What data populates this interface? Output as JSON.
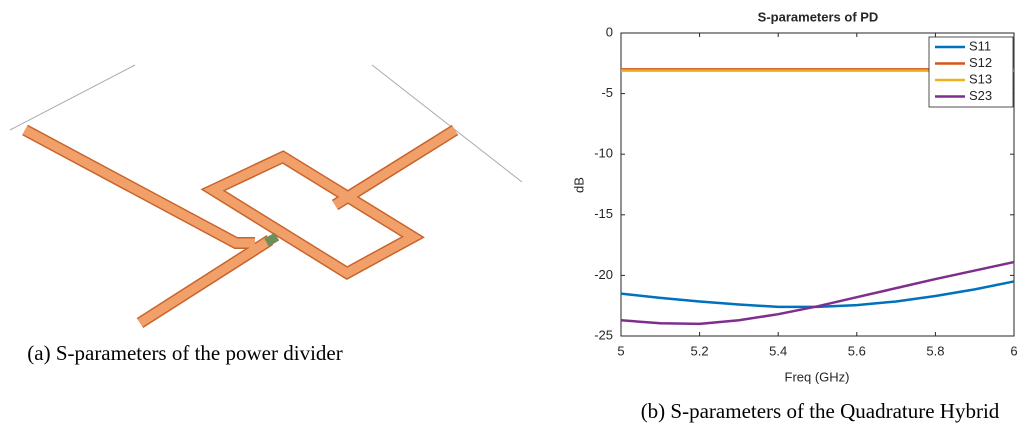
{
  "captions": [
    "(a) S-parameters of the power divider",
    "(b) S-parameters of the Quadrature Hybrid"
  ],
  "chart_data": {
    "type": "line",
    "title": "S-parameters of PD",
    "xlabel": "Freq (GHz)",
    "ylabel": "dB",
    "x": [
      5,
      5.1,
      5.2,
      5.3,
      5.4,
      5.5,
      5.6,
      5.7,
      5.8,
      5.9,
      6
    ],
    "series": [
      {
        "name": "S11",
        "color": "#0072bd",
        "values": [
          -21.5,
          -21.85,
          -22.15,
          -22.4,
          -22.6,
          -22.6,
          -22.45,
          -22.15,
          -21.7,
          -21.15,
          -20.5
        ]
      },
      {
        "name": "S12",
        "color": "#d95319",
        "values": [
          -3.0,
          -3.0,
          -3.0,
          -3.0,
          -3.0,
          -3.0,
          -3.0,
          -3.0,
          -3.0,
          -3.0,
          -3.0
        ]
      },
      {
        "name": "S13",
        "color": "#edb120",
        "values": [
          -3.1,
          -3.1,
          -3.1,
          -3.1,
          -3.1,
          -3.1,
          -3.1,
          -3.1,
          -3.1,
          -3.1,
          -3.1
        ]
      },
      {
        "name": "S23",
        "color": "#7e2f8e",
        "values": [
          -23.7,
          -23.95,
          -24.0,
          -23.7,
          -23.2,
          -22.55,
          -21.8,
          -21.05,
          -20.3,
          -19.6,
          -18.9
        ]
      }
    ],
    "xlim": [
      5,
      6
    ],
    "xticks": [
      5,
      5.2,
      5.4,
      5.6,
      5.8,
      6
    ],
    "ylim": [
      -25,
      0
    ],
    "yticks": [
      0,
      -5,
      -10,
      -15,
      -20,
      -25
    ],
    "legend": "top-right"
  }
}
